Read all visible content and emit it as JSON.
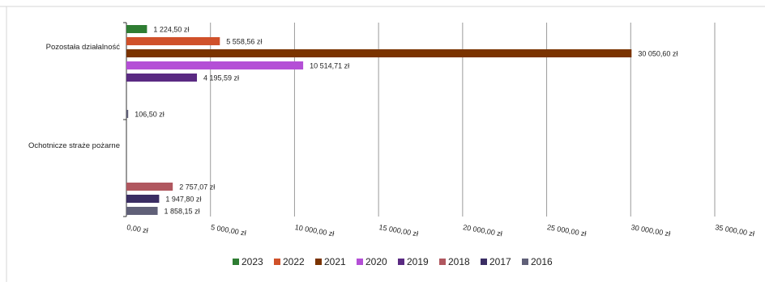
{
  "chart_data": {
    "type": "bar",
    "orientation": "horizontal",
    "categories": [
      "Pozostała działalność",
      "Ochotnicze straże pożarne"
    ],
    "series": [
      {
        "name": "2023",
        "color": "#2e7d32",
        "values": [
          1224.5,
          null
        ],
        "labels": [
          "1 224,50 zł",
          ""
        ]
      },
      {
        "name": "2022",
        "color": "#d0512a",
        "values": [
          5558.56,
          null
        ],
        "labels": [
          "5 558,56 zł",
          ""
        ]
      },
      {
        "name": "2021",
        "color": "#7a3300",
        "values": [
          30050.6,
          null
        ],
        "labels": [
          "30 050,60 zł",
          ""
        ]
      },
      {
        "name": "2020",
        "color": "#b44fd6",
        "values": [
          10514.71,
          null
        ],
        "labels": [
          "10 514,71 zł",
          ""
        ]
      },
      {
        "name": "2019",
        "color": "#5a2a82",
        "values": [
          4195.59,
          null
        ],
        "labels": [
          "4 195,59 zł",
          ""
        ]
      },
      {
        "name": "2018",
        "color": "#b0575f",
        "values": [
          null,
          2757.07
        ],
        "labels": [
          "",
          "2 757,07 zł"
        ]
      },
      {
        "name": "2017",
        "color": "#3a2d63",
        "values": [
          null,
          1947.8
        ],
        "labels": [
          "",
          "1 947,80 zł"
        ]
      },
      {
        "name": "2016",
        "color": "#606078",
        "values": [
          106.5,
          1858.15
        ],
        "labels": [
          "106,50 zł",
          "1 858,15 zł"
        ]
      }
    ],
    "xlim": [
      0,
      35000
    ],
    "xticks": [
      0,
      5000,
      10000,
      15000,
      20000,
      25000,
      30000,
      35000
    ],
    "xtick_labels": [
      "0,00 zł",
      "5 000,00 zł",
      "10 000,00 zł",
      "15 000,00 zł",
      "20 000,00 zł",
      "25 000,00 zł",
      "30 000,00 zł",
      "35 000,00 zł"
    ],
    "grid": true,
    "legend_position": "bottom",
    "title": "",
    "xlabel": "",
    "ylabel": ""
  }
}
